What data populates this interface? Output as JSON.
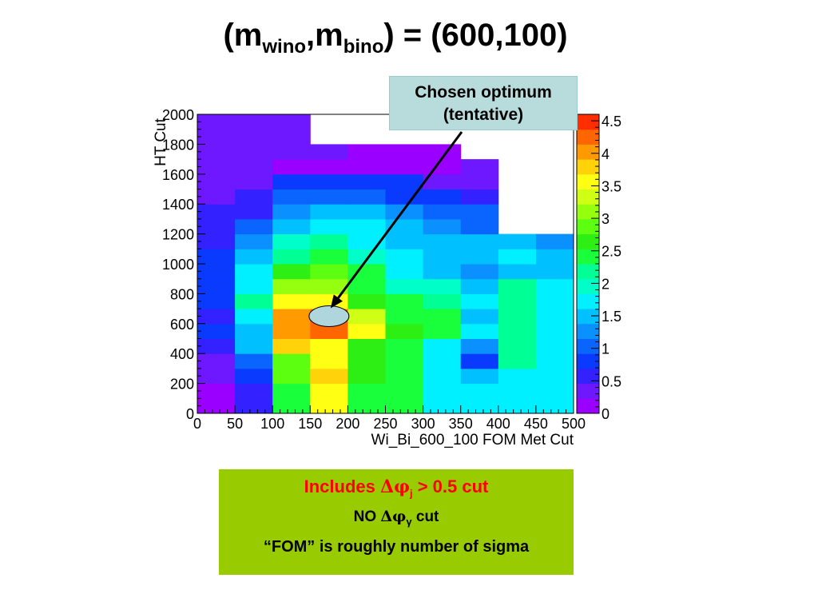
{
  "slide": {
    "title": {
      "open": "(m",
      "sub1": "wino",
      "mid": ",m",
      "sub2": "bino",
      "close": ") = (600,100)"
    },
    "callout": {
      "line1": "Chosen optimum",
      "line2": "(tentative)"
    },
    "notes": {
      "line1": {
        "pre": "Includes ",
        "delta": "Δ",
        "phi": "φ",
        "sub": "j",
        "post": " > 0.5 cut"
      },
      "line2": {
        "pre": "NO ",
        "delta": "Δ",
        "phi": "φ",
        "sub": "γ",
        "post": " cut"
      },
      "line3": "“FOM” is roughly number of sigma"
    }
  },
  "chart_data": {
    "type": "heatmap",
    "xlabel": "Wi_Bi_600_100 FOM Met Cut",
    "ylabel": "HT Cut",
    "xlim": [
      0,
      500
    ],
    "ylim": [
      0,
      2000
    ],
    "x_ticks": [
      "0",
      "50",
      "100",
      "150",
      "200",
      "250",
      "300",
      "350",
      "400",
      "450",
      "500"
    ],
    "y_ticks": [
      "0",
      "200",
      "400",
      "600",
      "800",
      "1000",
      "1200",
      "1400",
      "1600",
      "1800",
      "2000"
    ],
    "x_edges": [
      0,
      50,
      100,
      150,
      200,
      250,
      300,
      350,
      400,
      450,
      500
    ],
    "y_edges": [
      0,
      200,
      300,
      400,
      500,
      600,
      700,
      800,
      900,
      1000,
      1100,
      1200,
      1300,
      1400,
      1500,
      1600,
      1700,
      1800,
      2000
    ],
    "z": [
      [
        0.0,
        0.6,
        2.5,
        3.5,
        2.5,
        2.3,
        1.7,
        1.7,
        1.8,
        1.7
      ],
      [
        0.3,
        0.7,
        2.8,
        3.7,
        2.6,
        2.3,
        1.8,
        1.6,
        1.7,
        1.8
      ],
      [
        0.3,
        1.1,
        2.9,
        3.6,
        2.6,
        2.3,
        1.7,
        0.9,
        2.1,
        1.7
      ],
      [
        0.5,
        1.6,
        3.7,
        3.5,
        2.6,
        2.3,
        1.7,
        1.2,
        2.1,
        1.7
      ],
      [
        0.7,
        1.5,
        4.0,
        4.3,
        3.5,
        2.6,
        2.5,
        1.7,
        2.1,
        1.7
      ],
      [
        0.6,
        1.8,
        4.0,
        4.3,
        3.3,
        2.5,
        2.4,
        1.6,
        2.1,
        1.7
      ],
      [
        0.9,
        2.2,
        3.5,
        3.5,
        2.7,
        2.5,
        2.2,
        1.7,
        2.1,
        1.7
      ],
      [
        0.8,
        1.8,
        3.1,
        3.0,
        2.3,
        2.0,
        2.0,
        1.4,
        2.1,
        1.7
      ],
      [
        0.9,
        1.7,
        2.6,
        2.8,
        2.5,
        1.8,
        1.6,
        1.2,
        1.6,
        1.4
      ],
      [
        0.9,
        1.5,
        2.2,
        2.3,
        2.0,
        1.8,
        1.6,
        1.5,
        1.7,
        1.5
      ],
      [
        0.5,
        1.3,
        2.0,
        2.2,
        1.8,
        1.6,
        1.6,
        1.6,
        1.5,
        1.2
      ],
      [
        0.5,
        1.0,
        1.5,
        1.7,
        1.7,
        1.5,
        1.3,
        1.1,
        null,
        null
      ],
      [
        0.5,
        0.5,
        1.3,
        1.5,
        1.4,
        1.2,
        1.1,
        1.1,
        null,
        null
      ],
      [
        0.4,
        0.5,
        1.1,
        1.0,
        1.1,
        0.8,
        0.8,
        0.5,
        null,
        null
      ],
      [
        0.4,
        0.4,
        0.9,
        0.7,
        0.7,
        0.7,
        0.4,
        0.4,
        null,
        null
      ],
      [
        0.4,
        0.4,
        0.2,
        0.2,
        0.2,
        0.2,
        0.2,
        0.3,
        null,
        null
      ],
      [
        0.3,
        0.3,
        0.3,
        0.3,
        0.2,
        0.2,
        0.2,
        null,
        null,
        null
      ],
      [
        0.3,
        0.3,
        0.3,
        null,
        null,
        null,
        null,
        null,
        null,
        null
      ]
    ],
    "colorbar": {
      "range": [
        0,
        4.6
      ],
      "ticks": [
        "0",
        "0.5",
        "1",
        "1.5",
        "2",
        "2.5",
        "3",
        "3.5",
        "4",
        "4.5"
      ],
      "colors": [
        "#9a00ff",
        "#6e18ff",
        "#3322ff",
        "#0b3aff",
        "#0a65ff",
        "#0a91ff",
        "#00c0ff",
        "#00f0ff",
        "#00ffc8",
        "#00ff94",
        "#19ff3c",
        "#2eef14",
        "#5cff10",
        "#96ff10",
        "#cfff14",
        "#ffff14",
        "#ffd20a",
        "#ff9a00",
        "#ff6600",
        "#ff2d00"
      ]
    },
    "annotation": {
      "text": "Chosen optimum (tentative)",
      "marker_x": 175,
      "marker_y": 650
    }
  }
}
